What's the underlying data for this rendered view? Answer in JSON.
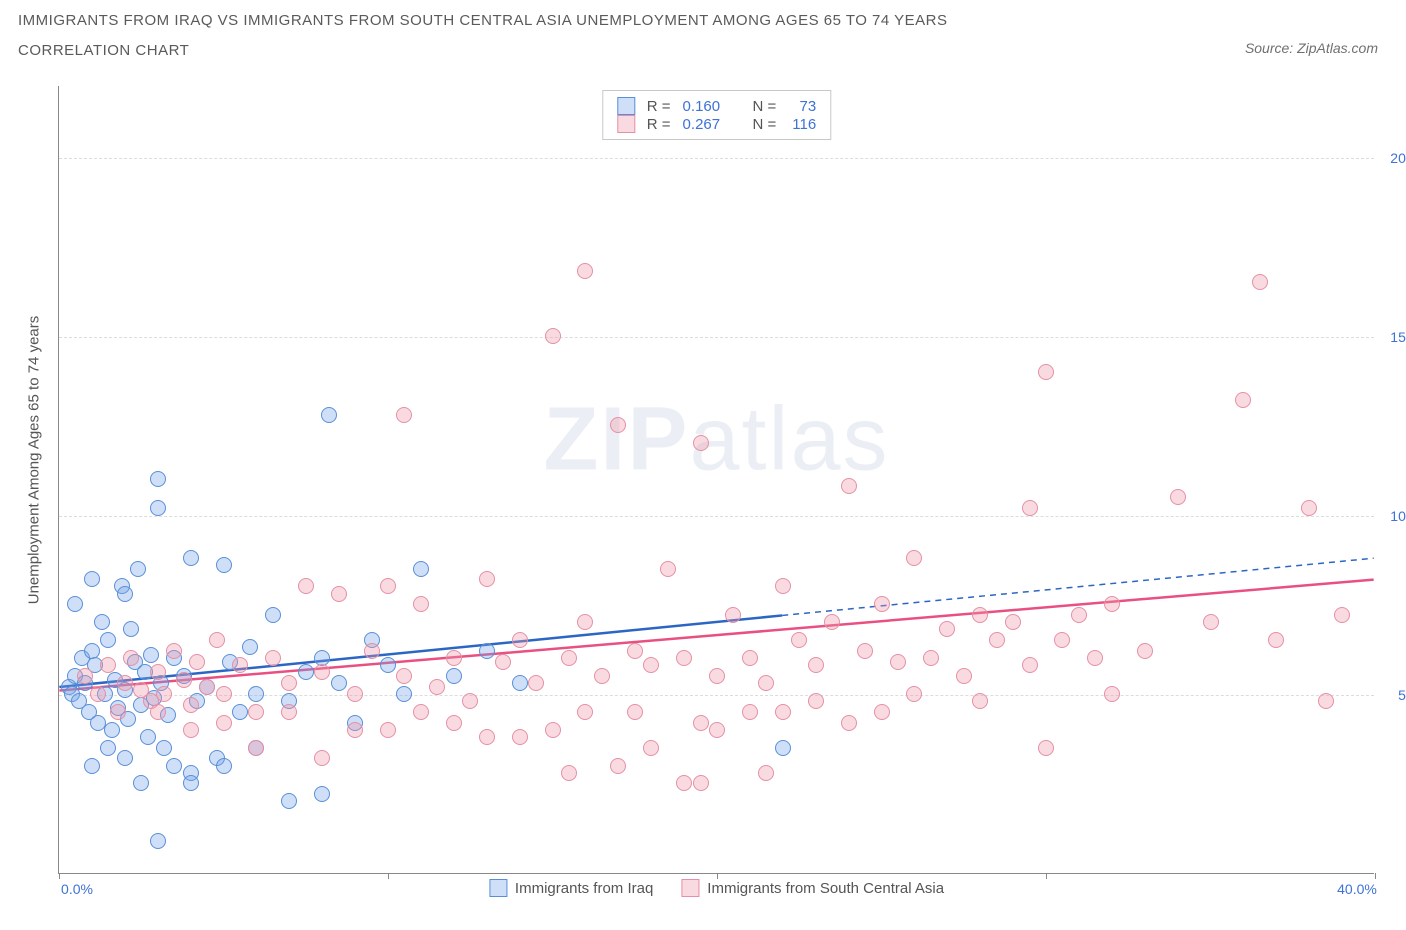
{
  "title_line1": "IMMIGRANTS FROM IRAQ VS IMMIGRANTS FROM SOUTH CENTRAL ASIA UNEMPLOYMENT AMONG AGES 65 TO 74 YEARS",
  "title_line2": "CORRELATION CHART",
  "source_label": "Source:",
  "source_name": "ZipAtlas.com",
  "y_axis_title": "Unemployment Among Ages 65 to 74 years",
  "watermark_bold": "ZIP",
  "watermark_rest": "atlas",
  "chart": {
    "type": "scatter",
    "x_min": 0,
    "x_max": 40,
    "y_min": 0,
    "y_max": 22,
    "x_ticks": [
      0,
      10,
      20,
      30,
      40
    ],
    "x_tick_labels": [
      "0.0%",
      "",
      "",
      "",
      "40.0%"
    ],
    "y_ticks": [
      5,
      10,
      15,
      20
    ],
    "y_tick_labels": [
      "5.0%",
      "10.0%",
      "15.0%",
      "20.0%"
    ],
    "grid_color": "#dcdcdc",
    "background": "#ffffff",
    "series": [
      {
        "name": "Immigrants from Iraq",
        "color_fill": "rgba(116,162,232,0.35)",
        "color_stroke": "#5a8fd8",
        "marker_radius": 8,
        "R": "0.160",
        "N": "73",
        "trend": {
          "x1": 0,
          "y1": 5.2,
          "x2": 22,
          "y2": 7.2,
          "x2_dash": 40,
          "y2_dash": 8.8,
          "stroke": "#2c66c4",
          "width": 2.5
        },
        "points": [
          [
            0.3,
            5.2
          ],
          [
            0.4,
            5.0
          ],
          [
            0.5,
            5.5
          ],
          [
            0.6,
            4.8
          ],
          [
            0.7,
            6.0
          ],
          [
            0.8,
            5.3
          ],
          [
            0.9,
            4.5
          ],
          [
            1.0,
            6.2
          ],
          [
            1.1,
            5.8
          ],
          [
            1.2,
            4.2
          ],
          [
            1.3,
            7.0
          ],
          [
            1.4,
            5.0
          ],
          [
            1.5,
            6.5
          ],
          [
            1.6,
            4.0
          ],
          [
            1.7,
            5.4
          ],
          [
            1.8,
            4.6
          ],
          [
            1.9,
            8.0
          ],
          [
            2.0,
            5.1
          ],
          [
            2.1,
            4.3
          ],
          [
            2.2,
            6.8
          ],
          [
            2.3,
            5.9
          ],
          [
            2.4,
            8.5
          ],
          [
            2.5,
            4.7
          ],
          [
            2.6,
            5.6
          ],
          [
            2.7,
            3.8
          ],
          [
            2.8,
            6.1
          ],
          [
            2.9,
            4.9
          ],
          [
            3.0,
            10.2
          ],
          [
            3.1,
            5.3
          ],
          [
            3.2,
            3.5
          ],
          [
            3.3,
            4.4
          ],
          [
            3.5,
            6.0
          ],
          [
            3.8,
            5.5
          ],
          [
            4.0,
            8.8
          ],
          [
            4.2,
            4.8
          ],
          [
            4.5,
            5.2
          ],
          [
            4.8,
            3.2
          ],
          [
            5.0,
            8.6
          ],
          [
            5.2,
            5.9
          ],
          [
            5.5,
            4.5
          ],
          [
            5.8,
            6.3
          ],
          [
            6.0,
            5.0
          ],
          [
            6.5,
            7.2
          ],
          [
            7.0,
            4.8
          ],
          [
            7.5,
            5.6
          ],
          [
            8.0,
            6.0
          ],
          [
            8.2,
            12.8
          ],
          [
            8.5,
            5.3
          ],
          [
            9.0,
            4.2
          ],
          [
            9.5,
            6.5
          ],
          [
            10.0,
            5.8
          ],
          [
            10.5,
            5.0
          ],
          [
            11.0,
            8.5
          ],
          [
            12.0,
            5.5
          ],
          [
            13.0,
            6.2
          ],
          [
            14.0,
            5.3
          ],
          [
            3.0,
            11.0
          ],
          [
            1.0,
            3.0
          ],
          [
            2.0,
            3.2
          ],
          [
            3.5,
            3.0
          ],
          [
            4.0,
            2.8
          ],
          [
            2.5,
            2.5
          ],
          [
            1.5,
            3.5
          ],
          [
            0.5,
            7.5
          ],
          [
            1.0,
            8.2
          ],
          [
            2.0,
            7.8
          ],
          [
            3.0,
            0.9
          ],
          [
            4.0,
            2.5
          ],
          [
            5.0,
            3.0
          ],
          [
            6.0,
            3.5
          ],
          [
            7.0,
            2.0
          ],
          [
            8.0,
            2.2
          ],
          [
            22.0,
            3.5
          ]
        ]
      },
      {
        "name": "Immigrants from South Central Asia",
        "color_fill": "rgba(240,150,170,0.35)",
        "color_stroke": "#e590a5",
        "marker_radius": 8,
        "R": "0.267",
        "N": "116",
        "trend": {
          "x1": 0,
          "y1": 5.1,
          "x2": 40,
          "y2": 8.2,
          "stroke": "#e95082",
          "width": 2.5
        },
        "points": [
          [
            0.8,
            5.5
          ],
          [
            1.2,
            5.0
          ],
          [
            1.5,
            5.8
          ],
          [
            1.8,
            4.5
          ],
          [
            2.0,
            5.3
          ],
          [
            2.2,
            6.0
          ],
          [
            2.5,
            5.1
          ],
          [
            2.8,
            4.8
          ],
          [
            3.0,
            5.6
          ],
          [
            3.2,
            5.0
          ],
          [
            3.5,
            6.2
          ],
          [
            3.8,
            5.4
          ],
          [
            4.0,
            4.7
          ],
          [
            4.2,
            5.9
          ],
          [
            4.5,
            5.2
          ],
          [
            4.8,
            6.5
          ],
          [
            5.0,
            5.0
          ],
          [
            5.5,
            5.8
          ],
          [
            6.0,
            4.5
          ],
          [
            6.5,
            6.0
          ],
          [
            7.0,
            5.3
          ],
          [
            7.5,
            8.0
          ],
          [
            8.0,
            5.6
          ],
          [
            8.5,
            7.8
          ],
          [
            9.0,
            5.0
          ],
          [
            9.5,
            6.2
          ],
          [
            10.0,
            8.0
          ],
          [
            10.5,
            5.5
          ],
          [
            11.0,
            7.5
          ],
          [
            11.5,
            5.2
          ],
          [
            12.0,
            6.0
          ],
          [
            12.5,
            4.8
          ],
          [
            13.0,
            8.2
          ],
          [
            13.5,
            5.9
          ],
          [
            14.0,
            6.5
          ],
          [
            14.5,
            5.3
          ],
          [
            15.0,
            15.0
          ],
          [
            15.5,
            6.0
          ],
          [
            16.0,
            7.0
          ],
          [
            16.5,
            5.5
          ],
          [
            17.0,
            12.5
          ],
          [
            17.5,
            6.2
          ],
          [
            18.0,
            5.8
          ],
          [
            18.5,
            8.5
          ],
          [
            19.0,
            6.0
          ],
          [
            19.5,
            12.0
          ],
          [
            20.0,
            5.5
          ],
          [
            20.5,
            7.2
          ],
          [
            21.0,
            6.0
          ],
          [
            21.5,
            5.3
          ],
          [
            22.0,
            8.0
          ],
          [
            22.5,
            6.5
          ],
          [
            23.0,
            5.8
          ],
          [
            23.5,
            7.0
          ],
          [
            24.0,
            10.8
          ],
          [
            24.5,
            6.2
          ],
          [
            25.0,
            7.5
          ],
          [
            25.5,
            5.9
          ],
          [
            26.0,
            8.8
          ],
          [
            26.5,
            6.0
          ],
          [
            27.0,
            6.8
          ],
          [
            27.5,
            5.5
          ],
          [
            28.0,
            7.2
          ],
          [
            28.5,
            6.5
          ],
          [
            29.0,
            7.0
          ],
          [
            29.5,
            5.8
          ],
          [
            30.0,
            14.0
          ],
          [
            30.5,
            6.5
          ],
          [
            31.0,
            7.2
          ],
          [
            31.5,
            6.0
          ],
          [
            32.0,
            7.5
          ],
          [
            33.0,
            6.2
          ],
          [
            34.0,
            10.5
          ],
          [
            35.0,
            7.0
          ],
          [
            36.0,
            13.2
          ],
          [
            36.5,
            16.5
          ],
          [
            37.0,
            6.5
          ],
          [
            38.0,
            10.2
          ],
          [
            38.5,
            4.8
          ],
          [
            39.0,
            7.2
          ],
          [
            16.0,
            16.8
          ],
          [
            10.0,
            4.0
          ],
          [
            12.0,
            4.2
          ],
          [
            14.0,
            3.8
          ],
          [
            16.0,
            4.5
          ],
          [
            18.0,
            3.5
          ],
          [
            20.0,
            4.0
          ],
          [
            22.0,
            4.5
          ],
          [
            24.0,
            4.2
          ],
          [
            26.0,
            5.0
          ],
          [
            28.0,
            4.8
          ],
          [
            30.0,
            3.5
          ],
          [
            32.0,
            5.0
          ],
          [
            15.5,
            2.8
          ],
          [
            17.0,
            3.0
          ],
          [
            19.0,
            2.5
          ],
          [
            8.0,
            3.2
          ],
          [
            6.0,
            3.5
          ],
          [
            4.0,
            4.0
          ],
          [
            5.0,
            4.2
          ],
          [
            7.0,
            4.5
          ],
          [
            9.0,
            4.0
          ],
          [
            11.0,
            4.5
          ],
          [
            13.0,
            3.8
          ],
          [
            3.0,
            4.5
          ],
          [
            19.5,
            2.5
          ],
          [
            21.5,
            2.8
          ],
          [
            15.0,
            4.0
          ],
          [
            17.5,
            4.5
          ],
          [
            19.5,
            4.2
          ],
          [
            21.0,
            4.5
          ],
          [
            23.0,
            4.8
          ],
          [
            25.0,
            4.5
          ],
          [
            10.5,
            12.8
          ],
          [
            29.5,
            10.2
          ]
        ]
      }
    ]
  },
  "legend_top": {
    "R_label": "R =",
    "N_label": "N ="
  },
  "legend_bottom_labels": [
    "Immigrants from Iraq",
    "Immigrants from South Central Asia"
  ]
}
